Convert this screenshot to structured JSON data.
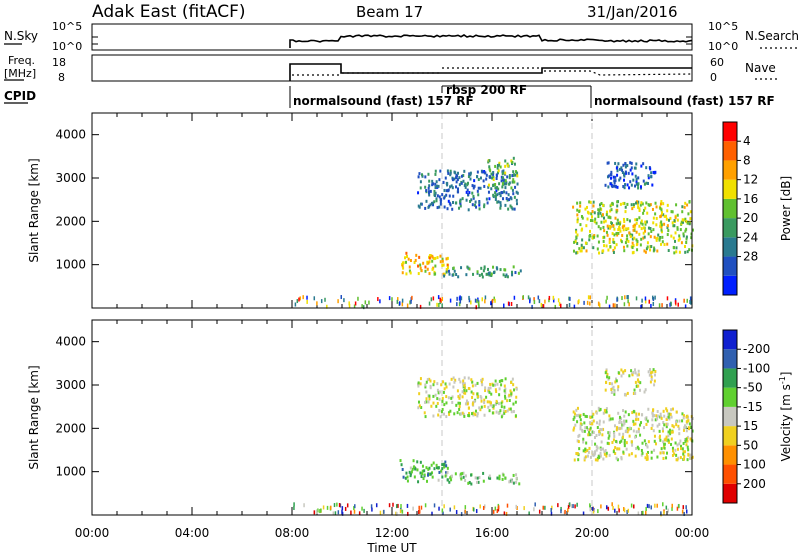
{
  "header": {
    "station": "Adak East (fitACF)",
    "beam": "Beam 17",
    "date": "31/Jan/2016"
  },
  "noise_panel": {
    "left_label": "N.Sky",
    "right_label": "N.Search",
    "left_ticks": [
      "10^5",
      "10^0"
    ],
    "right_ticks": [
      "10^5",
      "10^0"
    ]
  },
  "freq_panel": {
    "left_label_1": "Freq.",
    "left_label_2": "[MHz]",
    "right_label": "Nave",
    "left_ticks": [
      "18",
      "8"
    ],
    "right_ticks": [
      "60",
      "0"
    ]
  },
  "cpid": {
    "label": "CPID",
    "segments": [
      {
        "label": "normalsound (fast) 157 RF",
        "start_hour": 8,
        "end_hour": 14
      },
      {
        "label": "rbsp 200 RF",
        "start_hour": 14,
        "end_hour": 20
      },
      {
        "label": "normalsound (fast) 157 RF",
        "start_hour": 20,
        "end_hour": 24
      }
    ]
  },
  "colors": {
    "power": [
      "#0020ff",
      "#2050c0",
      "#2a7a90",
      "#3a9a60",
      "#60c030",
      "#f0e000",
      "#ffa000",
      "#ff6000",
      "#ff0000"
    ],
    "velocity": [
      "#e00000",
      "#ff5000",
      "#ff9000",
      "#f0d020",
      "#c8c8c0",
      "#60d030",
      "#30a050",
      "#3060b0",
      "#1020d0"
    ],
    "ground_scatter": "#a0a0a0"
  },
  "chart_data": [
    {
      "type": "heatmap",
      "title": "",
      "xlabel": "",
      "ylabel": "Slant Range [km]",
      "xlim": [
        0,
        24
      ],
      "ylim": [
        0,
        4500
      ],
      "x_ticks": [
        0,
        4,
        8,
        12,
        16,
        20,
        24
      ],
      "y_ticks": [
        1000,
        2000,
        3000,
        4000
      ],
      "colorbar": {
        "label": "Power [dB]",
        "ticks": [
          "4",
          "8",
          "12",
          "16",
          "20",
          "24",
          "28"
        ],
        "range": [
          0,
          30
        ]
      },
      "regions": [
        {
          "t0": 13.0,
          "t1": 17.0,
          "r0": 2300,
          "r1": 3200,
          "level": 0.25
        },
        {
          "t0": 15.8,
          "t1": 17.0,
          "r0": 2800,
          "r1": 3500,
          "level": 0.45
        },
        {
          "t0": 12.3,
          "t1": 14.2,
          "r0": 800,
          "r1": 1300,
          "level": 0.65
        },
        {
          "t0": 14.0,
          "t1": 17.2,
          "r0": 750,
          "r1": 1000,
          "level": 0.35
        },
        {
          "t0": 19.2,
          "t1": 24.0,
          "r0": 1300,
          "r1": 2500,
          "level": 0.55
        },
        {
          "t0": 20.5,
          "t1": 22.5,
          "r0": 2800,
          "r1": 3400,
          "level": 0.2
        }
      ]
    },
    {
      "type": "heatmap",
      "title": "",
      "xlabel": "Time UT",
      "ylabel": "Slant Range [km]",
      "xlim": [
        0,
        24
      ],
      "ylim": [
        0,
        4500
      ],
      "x_ticks": [
        0,
        4,
        8,
        12,
        16,
        20,
        24
      ],
      "x_tick_labels": [
        "00:00",
        "04:00",
        "08:00",
        "12:00",
        "16:00",
        "20:00",
        "00:00"
      ],
      "y_ticks": [
        1000,
        2000,
        3000,
        4000
      ],
      "colorbar": {
        "label": "Velocity [m s",
        "label_sup": "-1",
        "label_end": "]",
        "ticks": [
          "200",
          "100",
          "50",
          "15",
          "-15",
          "-50",
          "-100",
          "-200"
        ]
      },
      "regions": [
        {
          "t0": 13.0,
          "t1": 17.0,
          "r0": 2300,
          "r1": 3200,
          "level": 0.5
        },
        {
          "t0": 12.3,
          "t1": 14.2,
          "r0": 800,
          "r1": 1300,
          "level": 0.68
        },
        {
          "t0": 14.0,
          "t1": 17.2,
          "r0": 750,
          "r1": 1000,
          "level": 0.6
        },
        {
          "t0": 19.2,
          "t1": 24.0,
          "r0": 1300,
          "r1": 2500,
          "level": 0.5
        },
        {
          "t0": 20.5,
          "t1": 22.5,
          "r0": 2800,
          "r1": 3400,
          "level": 0.5
        }
      ]
    }
  ]
}
